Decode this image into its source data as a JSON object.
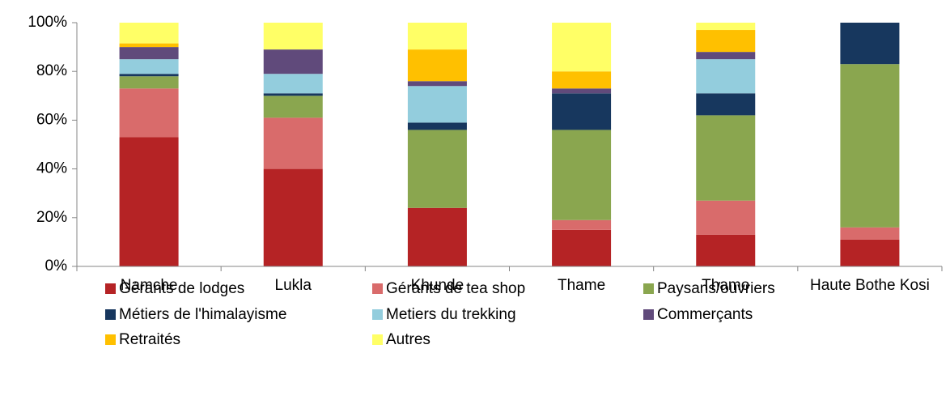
{
  "chart_data": {
    "type": "stacked_bar",
    "categories": [
      "Namche",
      "Lukla",
      "Khunde",
      "Thame",
      "Thamo",
      "Haute Bothe Kosi"
    ],
    "series": [
      {
        "name": "Gérants de lodges",
        "color": "#b52325",
        "values": [
          53,
          40,
          24,
          15,
          13,
          11
        ]
      },
      {
        "name": "Gérants de tea shop",
        "color": "#d96b6b",
        "values": [
          20,
          21,
          0,
          4,
          14,
          5
        ]
      },
      {
        "name": "Paysans/ouvriers",
        "color": "#8aa64f",
        "values": [
          5,
          9,
          32,
          37,
          35,
          67
        ]
      },
      {
        "name": "Métiers de l'himalayisme",
        "color": "#17375e",
        "values": [
          1,
          1,
          3,
          15,
          9,
          17
        ]
      },
      {
        "name": "Metiers du trekking",
        "color": "#93cddd",
        "values": [
          6,
          8,
          15,
          0,
          14,
          0
        ]
      },
      {
        "name": "Commerçants",
        "color": "#604a7b",
        "values": [
          5,
          10,
          2,
          2,
          3,
          0
        ]
      },
      {
        "name": "Retraités",
        "color": "#ffc000",
        "values": [
          1.5,
          0,
          13,
          7,
          9,
          0
        ]
      },
      {
        "name": "Autres",
        "color": "#ffff66",
        "values": [
          8.5,
          11,
          11,
          20,
          3,
          0
        ]
      }
    ],
    "ylim": [
      0,
      100
    ],
    "yticks": [
      {
        "value": 0,
        "label": "0%"
      },
      {
        "value": 20,
        "label": "20%"
      },
      {
        "value": 40,
        "label": "40%"
      },
      {
        "value": 60,
        "label": "60%"
      },
      {
        "value": 80,
        "label": "80%"
      },
      {
        "value": 100,
        "label": "100%"
      }
    ],
    "legend": "bottom"
  }
}
